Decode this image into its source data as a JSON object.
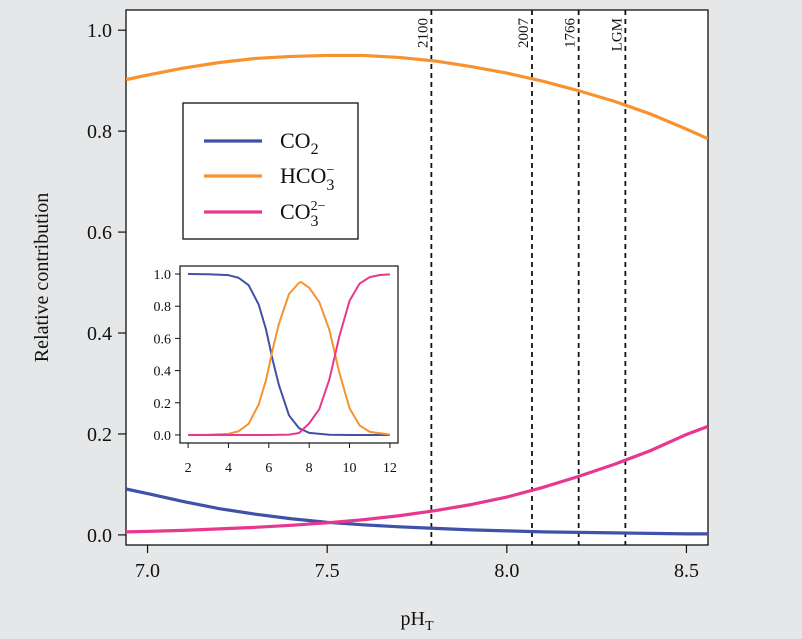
{
  "chart_data": {
    "type": "line",
    "xlabel": "pH",
    "xlabel_sub": "T",
    "ylabel": "Relative contribution",
    "xlim": [
      6.94,
      8.56
    ],
    "ylim": [
      -0.02,
      1.04
    ],
    "xticks": [
      7.0,
      7.5,
      8.0,
      8.5
    ],
    "xtick_labels": [
      "7.0",
      "7.5",
      "8.0",
      "8.5"
    ],
    "yticks": [
      0.0,
      0.2,
      0.4,
      0.6,
      0.8,
      1.0
    ],
    "ytick_labels": [
      "0.0",
      "0.2",
      "0.4",
      "0.6",
      "0.8",
      "1.0"
    ],
    "grid": false,
    "legend_position": "upper-left",
    "colors": {
      "co2": "#3f51a8",
      "hco3": "#f7922f",
      "co3": "#e8388e"
    },
    "legend": [
      {
        "key": "co2",
        "base": "CO",
        "sub": "2",
        "sup": ""
      },
      {
        "key": "hco3",
        "base": "HCO",
        "sub": "3",
        "sup": "−"
      },
      {
        "key": "co3",
        "base": "CO",
        "sub": "3",
        "sup": "2−"
      }
    ],
    "series": [
      {
        "key": "co2",
        "x": [
          6.94,
          7.0,
          7.1,
          7.2,
          7.3,
          7.4,
          7.5,
          7.6,
          7.7,
          7.8,
          7.9,
          8.0,
          8.1,
          8.2,
          8.3,
          8.4,
          8.5,
          8.56
        ],
        "y": [
          0.091,
          0.082,
          0.066,
          0.052,
          0.041,
          0.032,
          0.025,
          0.02,
          0.016,
          0.013,
          0.01,
          0.008,
          0.006,
          0.005,
          0.004,
          0.003,
          0.002,
          0.002
        ]
      },
      {
        "key": "hco3",
        "x": [
          6.94,
          7.0,
          7.1,
          7.2,
          7.3,
          7.4,
          7.5,
          7.6,
          7.7,
          7.8,
          7.9,
          8.0,
          8.1,
          8.2,
          8.3,
          8.4,
          8.5,
          8.56
        ],
        "y": [
          0.902,
          0.911,
          0.925,
          0.936,
          0.944,
          0.948,
          0.95,
          0.95,
          0.946,
          0.939,
          0.928,
          0.915,
          0.899,
          0.88,
          0.859,
          0.834,
          0.804,
          0.785
        ]
      },
      {
        "key": "co3",
        "x": [
          6.94,
          7.0,
          7.1,
          7.2,
          7.3,
          7.4,
          7.5,
          7.6,
          7.7,
          7.8,
          7.9,
          8.0,
          8.1,
          8.2,
          8.3,
          8.4,
          8.5,
          8.56
        ],
        "y": [
          0.006,
          0.007,
          0.009,
          0.012,
          0.015,
          0.019,
          0.024,
          0.03,
          0.038,
          0.048,
          0.06,
          0.075,
          0.094,
          0.116,
          0.14,
          0.167,
          0.199,
          0.215
        ]
      }
    ],
    "vlines": [
      {
        "x": 7.79,
        "label": "2100"
      },
      {
        "x": 8.07,
        "label": "2007"
      },
      {
        "x": 8.2,
        "label": "1766"
      },
      {
        "x": 8.33,
        "label": "LGM"
      }
    ],
    "inset": {
      "type": "line",
      "xlim": [
        1.6,
        12.4
      ],
      "ylim": [
        -0.05,
        1.05
      ],
      "xticks": [
        2,
        4,
        6,
        8,
        10,
        12
      ],
      "xtick_labels": [
        "2",
        "4",
        "6",
        "8",
        "10",
        "12"
      ],
      "yticks": [
        0.0,
        0.2,
        0.4,
        0.6,
        0.8,
        1.0
      ],
      "ytick_labels": [
        "0.0",
        "0.2",
        "0.4",
        "0.6",
        "0.8",
        "1.0"
      ],
      "series": [
        {
          "key": "co2",
          "x": [
            2,
            3,
            4,
            4.5,
            5,
            5.5,
            5.86,
            6.2,
            6.5,
            7,
            7.5,
            8,
            9,
            10,
            11,
            12
          ],
          "y": [
            1.0,
            0.999,
            0.993,
            0.977,
            0.931,
            0.81,
            0.656,
            0.462,
            0.31,
            0.122,
            0.042,
            0.013,
            0.001,
            0.0,
            0.0,
            0.0
          ]
        },
        {
          "key": "hco3",
          "x": [
            2,
            3,
            4,
            4.5,
            5,
            5.5,
            5.86,
            6.2,
            6.5,
            7,
            7.5,
            7.6,
            8,
            8.5,
            9,
            9.5,
            10,
            10.5,
            11,
            12
          ],
          "y": [
            0.0,
            0.001,
            0.007,
            0.023,
            0.069,
            0.19,
            0.34,
            0.536,
            0.69,
            0.876,
            0.946,
            0.95,
            0.915,
            0.826,
            0.653,
            0.385,
            0.166,
            0.059,
            0.019,
            0.002
          ]
        },
        {
          "key": "co3",
          "x": [
            2,
            6,
            7,
            7.5,
            8,
            8.5,
            9,
            9.5,
            10,
            10.5,
            11,
            11.5,
            12
          ],
          "y": [
            0.0,
            0.0,
            0.002,
            0.012,
            0.072,
            0.16,
            0.345,
            0.615,
            0.834,
            0.941,
            0.981,
            0.994,
            0.998
          ]
        }
      ]
    }
  }
}
